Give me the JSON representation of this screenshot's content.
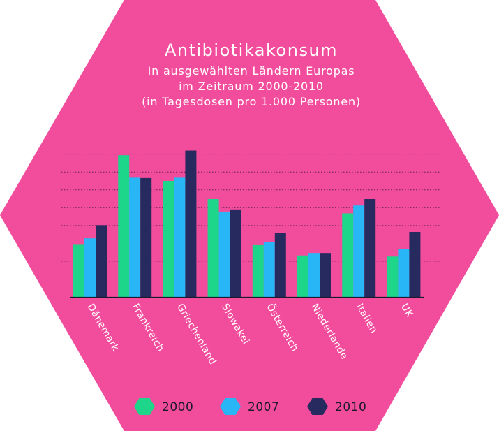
{
  "colors": {
    "background": "#f24d9c",
    "grid": "#2a1430",
    "axis": "#1a1a2e",
    "text": "#ffffff"
  },
  "chart_data": {
    "type": "bar",
    "title": "Antibiotikakonsum",
    "subtitle_lines": [
      "In ausgewählten Ländern Europas",
      "im Zeitraum 2000-2010",
      "(in Tagesdosen pro 1.000 Personen)"
    ],
    "categories": [
      "Dänemark",
      "Frankreich",
      "Griechenland",
      "Slowakei",
      "Österreich",
      "Niederlande",
      "Italien",
      "UK"
    ],
    "series": [
      {
        "name": "2000",
        "color": "#1ed68a",
        "values": [
          14.6,
          39.7,
          32.5,
          27.4,
          14.5,
          11.6,
          23.4,
          11.3
        ]
      },
      {
        "name": "2007",
        "color": "#29b6f6",
        "values": [
          16.4,
          33.4,
          33.4,
          23.9,
          15.3,
          12.3,
          25.6,
          13.4
        ]
      },
      {
        "name": "2010",
        "color": "#272a5e",
        "values": [
          20.1,
          33.3,
          41.0,
          24.5,
          17.9,
          12.3,
          27.4,
          18.2
        ]
      }
    ],
    "ylim": [
      0,
      46
    ],
    "grid": true,
    "legend_position": "bottom"
  }
}
